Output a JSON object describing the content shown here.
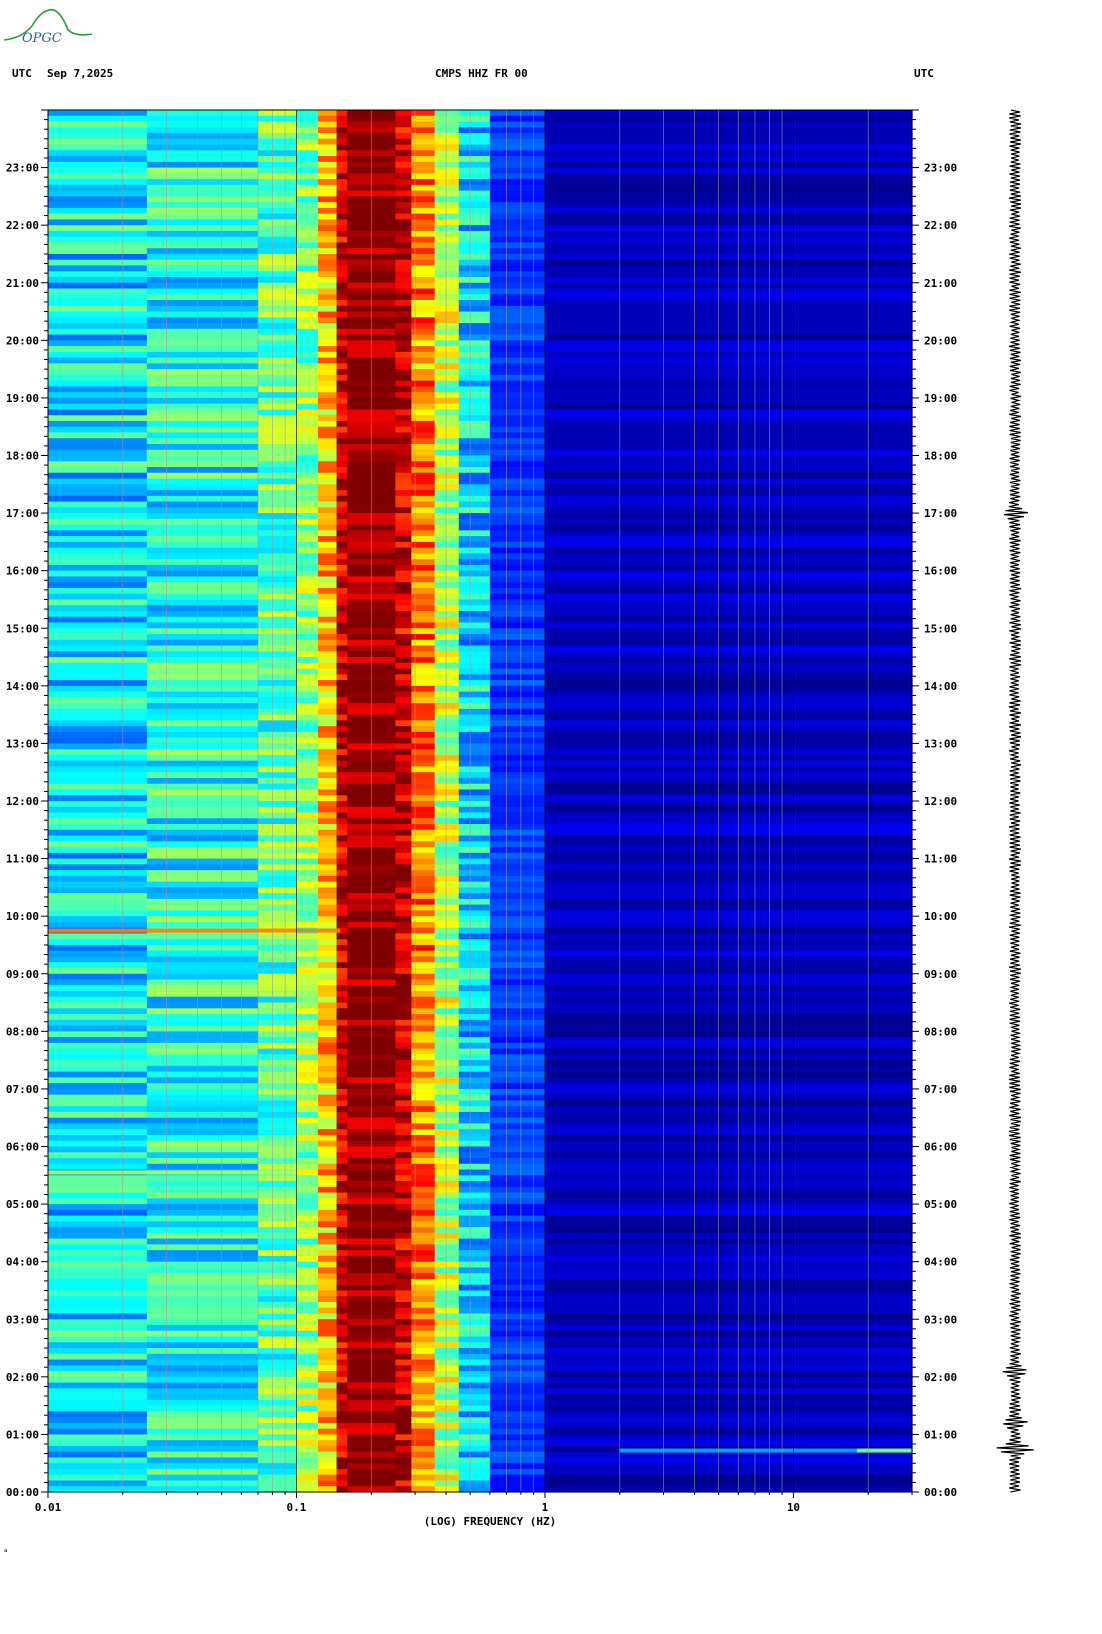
{
  "header": {
    "left_tz": "UTC",
    "date": "Sep 7,2025",
    "station": "CMPS HHZ FR 00",
    "right_tz": "UTC"
  },
  "logo": {
    "text": "OPGC",
    "icon": "opgc-mountain-logo"
  },
  "footer_mark": "ᵃ",
  "colors": {
    "background": "#ffffff",
    "spectrogram_low": "#00008c",
    "spectrogram_mid": "#1e64ff",
    "spectrogram_high": "#ffff00",
    "spectrogram_peak": "#8c0000",
    "gridline": "#9a9a9a",
    "trace": "#000000"
  },
  "chart_data": {
    "type": "heatmap",
    "title": "CMPS HHZ FR 00",
    "xlabel": "(LOG) FREQUENCY (HZ)",
    "ylabel": "",
    "x_scale": "log",
    "xlim": [
      0.01,
      30
    ],
    "x_ticks": [
      {
        "value": 0.01,
        "label": "0.01"
      },
      {
        "value": 0.1,
        "label": "0.1"
      },
      {
        "value": 1,
        "label": "1"
      },
      {
        "value": 10,
        "label": "10"
      }
    ],
    "y_unit": "hours UTC",
    "ylim": [
      0,
      24
    ],
    "y_ticks": [
      {
        "value": 0,
        "label": "00:00"
      },
      {
        "value": 1,
        "label": "01:00"
      },
      {
        "value": 2,
        "label": "02:00"
      },
      {
        "value": 3,
        "label": "03:00"
      },
      {
        "value": 4,
        "label": "04:00"
      },
      {
        "value": 5,
        "label": "05:00"
      },
      {
        "value": 6,
        "label": "06:00"
      },
      {
        "value": 7,
        "label": "07:00"
      },
      {
        "value": 8,
        "label": "08:00"
      },
      {
        "value": 9,
        "label": "09:00"
      },
      {
        "value": 10,
        "label": "10:00"
      },
      {
        "value": 11,
        "label": "11:00"
      },
      {
        "value": 12,
        "label": "12:00"
      },
      {
        "value": 13,
        "label": "13:00"
      },
      {
        "value": 14,
        "label": "14:00"
      },
      {
        "value": 15,
        "label": "15:00"
      },
      {
        "value": 16,
        "label": "16:00"
      },
      {
        "value": 17,
        "label": "17:00"
      },
      {
        "value": 18,
        "label": "18:00"
      },
      {
        "value": 19,
        "label": "19:00"
      },
      {
        "value": 20,
        "label": "20:00"
      },
      {
        "value": 21,
        "label": "21:00"
      },
      {
        "value": 22,
        "label": "22:00"
      },
      {
        "value": 23,
        "label": "23:00"
      }
    ],
    "frequency_bands_hz": [
      {
        "from": 0.01,
        "to": 0.025,
        "level": 0.36
      },
      {
        "from": 0.025,
        "to": 0.07,
        "level": 0.4
      },
      {
        "from": 0.07,
        "to": 0.1,
        "level": 0.46
      },
      {
        "from": 0.1,
        "to": 0.122,
        "level": 0.52
      },
      {
        "from": 0.122,
        "to": 0.145,
        "level": 0.68
      },
      {
        "from": 0.145,
        "to": 0.16,
        "level": 0.92
      },
      {
        "from": 0.16,
        "to": 0.25,
        "level": 1.0
      },
      {
        "from": 0.25,
        "to": 0.29,
        "level": 0.92
      },
      {
        "from": 0.29,
        "to": 0.36,
        "level": 0.74
      },
      {
        "from": 0.36,
        "to": 0.45,
        "level": 0.56
      },
      {
        "from": 0.45,
        "to": 0.6,
        "level": 0.34
      },
      {
        "from": 0.6,
        "to": 1.0,
        "level": 0.18
      },
      {
        "from": 1.0,
        "to": 30,
        "level": 0.06
      }
    ],
    "events": [
      {
        "time_h": 9.75,
        "freq_from_hz": 0.01,
        "freq_to_hz": 0.15,
        "level": 0.75
      },
      {
        "time_h": 5.55,
        "freq_from_hz": 0.01,
        "freq_to_hz": 0.1,
        "level": 0.55
      },
      {
        "time_h": 8.65,
        "freq_from_hz": 0.025,
        "freq_to_hz": 0.1,
        "level": 0.55
      },
      {
        "time_h": 0.72,
        "freq_from_hz": 2,
        "freq_to_hz": 30,
        "level": 0.3
      },
      {
        "time_h": 0.72,
        "freq_from_hz": 18,
        "freq_to_hz": 30,
        "level": 0.5
      }
    ],
    "trace_spikes_h": [
      0.75,
      1.2,
      2.1,
      17.0
    ]
  }
}
